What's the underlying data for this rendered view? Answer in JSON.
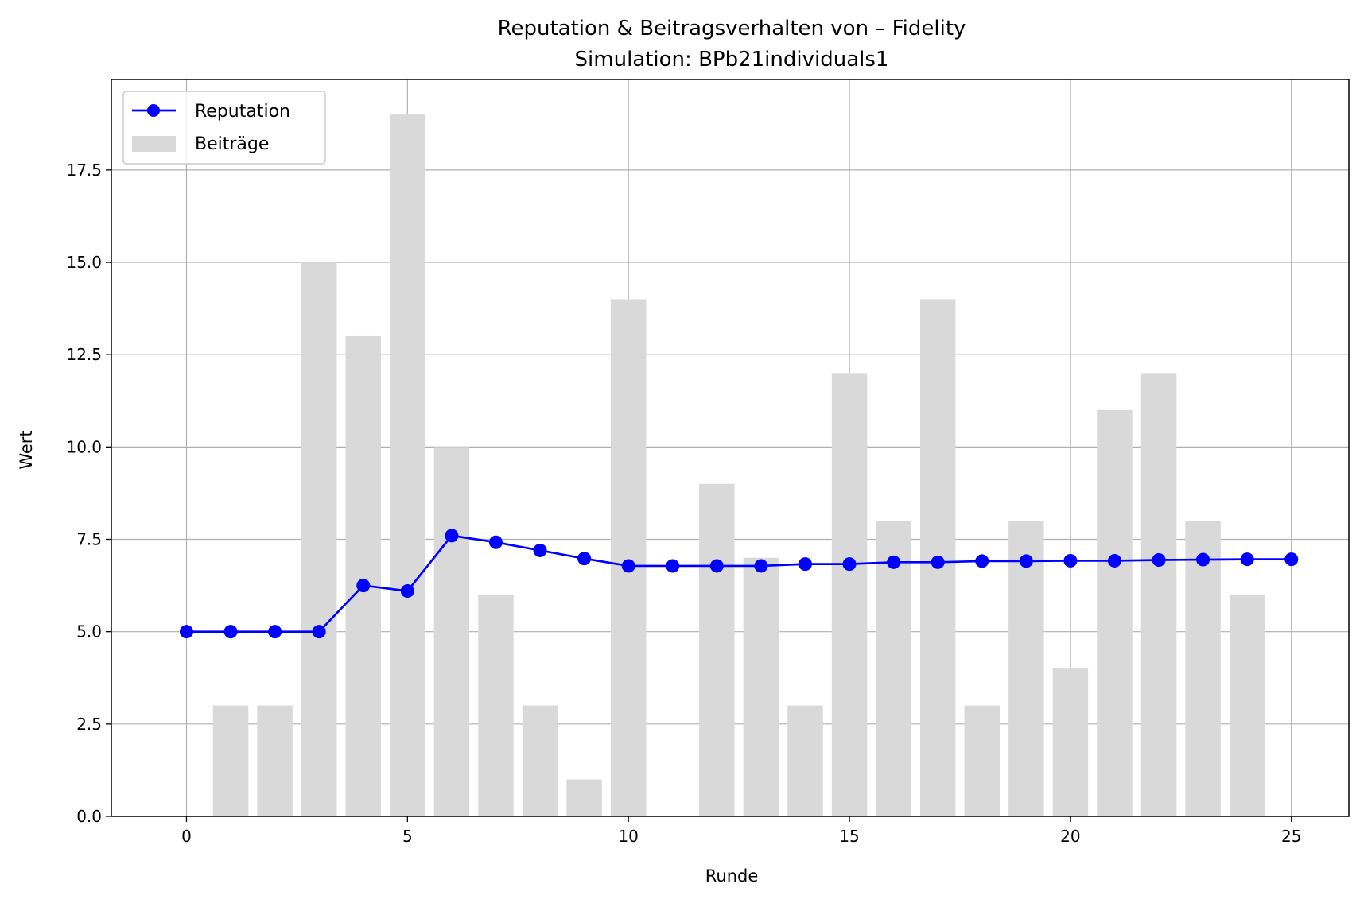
{
  "chart_data": {
    "type": "bar",
    "title": "Reputation & Beitragsverhalten von – Fidelity",
    "subtitle": "Simulation: BPb21individuals1",
    "xlabel": "Runde",
    "ylabel": "Wert",
    "xlim": [
      -1.7,
      26.3
    ],
    "ylim": [
      0,
      19.95
    ],
    "xticks": [
      0,
      5,
      10,
      15,
      20,
      25
    ],
    "xtick_labels": [
      "0",
      "5",
      "10",
      "15",
      "20",
      "25"
    ],
    "yticks": [
      0,
      2.5,
      5,
      7.5,
      10,
      12.5,
      15,
      17.5
    ],
    "ytick_labels": [
      "0.0",
      "2.5",
      "5.0",
      "7.5",
      "10.0",
      "12.5",
      "15.0",
      "17.5"
    ],
    "grid": true,
    "legend_position": "top-left",
    "series": [
      {
        "name": "Beiträge",
        "type": "bar",
        "color": "#d9d9d9",
        "x": [
          1,
          2,
          3,
          4,
          5,
          6,
          7,
          8,
          9,
          10,
          11,
          12,
          13,
          14,
          15,
          16,
          17,
          18,
          19,
          20,
          21,
          22,
          23,
          24
        ],
        "values": [
          3,
          3,
          15,
          13,
          19,
          10,
          6,
          3,
          1,
          14,
          0,
          9,
          7,
          3,
          12,
          8,
          14,
          3,
          8,
          4,
          11,
          12,
          8,
          6
        ]
      },
      {
        "name": "Reputation",
        "type": "line",
        "color": "#0000ff",
        "x": [
          0,
          1,
          2,
          3,
          4,
          5,
          6,
          7,
          8,
          9,
          10,
          11,
          12,
          13,
          14,
          15,
          16,
          17,
          18,
          19,
          20,
          21,
          22,
          23,
          24,
          25
        ],
        "values": [
          5.0,
          5.0,
          5.0,
          5.0,
          6.25,
          6.1,
          7.6,
          7.42,
          7.2,
          6.98,
          6.78,
          6.78,
          6.78,
          6.78,
          6.83,
          6.83,
          6.88,
          6.88,
          6.91,
          6.91,
          6.92,
          6.92,
          6.94,
          6.95,
          6.96,
          6.96
        ]
      }
    ]
  }
}
